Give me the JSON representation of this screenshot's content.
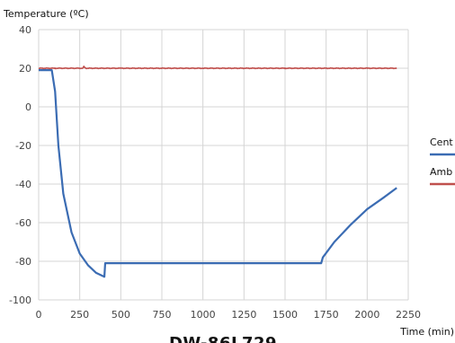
{
  "chart_data": {
    "type": "line",
    "title": "DW-86L729",
    "xlabel": "Time (min)",
    "ylabel": "Temperature (ºC)",
    "xlim": [
      0,
      2250
    ],
    "ylim": [
      -100,
      40
    ],
    "xticks": [
      0,
      250,
      500,
      750,
      1000,
      1250,
      1500,
      1750,
      2000,
      2250
    ],
    "yticks": [
      -100,
      -80,
      -60,
      -40,
      -20,
      0,
      20,
      40
    ],
    "grid": true,
    "legend_position": "right",
    "series": [
      {
        "name": "Cent",
        "color": "#3b6cb3",
        "x": [
          0,
          80,
          100,
          120,
          150,
          200,
          250,
          300,
          350,
          400,
          405,
          410,
          500,
          1000,
          1500,
          1720,
          1730,
          1800,
          1900,
          2000,
          2100,
          2180
        ],
        "y": [
          19,
          19,
          8,
          -20,
          -45,
          -65,
          -76,
          -82,
          -86,
          -88,
          -81,
          -81,
          -81,
          -81,
          -81,
          -81,
          -78,
          -70,
          -61,
          -53,
          -47,
          -42
        ]
      },
      {
        "name": "Amb",
        "color": "#c0504d",
        "x": [
          0,
          100,
          270,
          275,
          285,
          500,
          1000,
          1500,
          2000,
          2180
        ],
        "y": [
          20,
          20,
          20,
          21,
          20,
          20,
          20,
          20,
          20,
          20
        ]
      }
    ]
  }
}
